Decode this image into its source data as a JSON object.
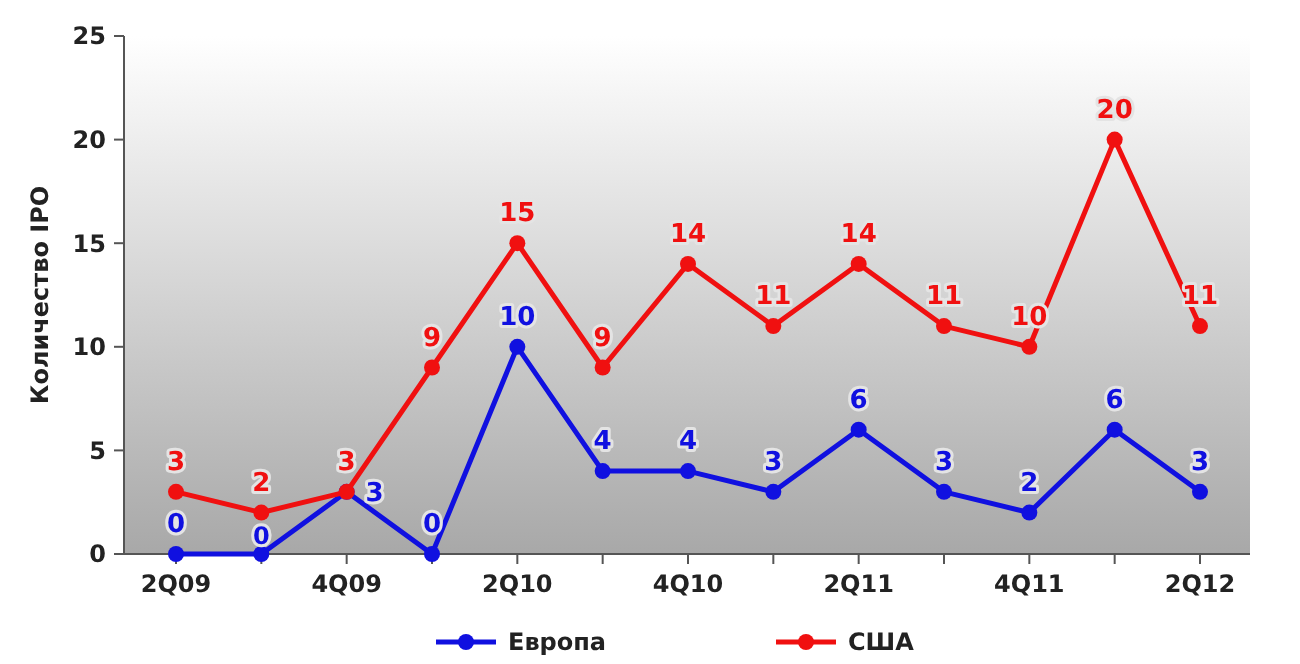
{
  "chart_data": {
    "type": "line",
    "ylabel": "Количество IPO",
    "categories": [
      "2Q09",
      null,
      "4Q09",
      null,
      "2Q10",
      null,
      "4Q10",
      null,
      "2Q11",
      null,
      "4Q11",
      null,
      "2Q12"
    ],
    "series": [
      {
        "name": "Европа",
        "color": "#1010e0",
        "values": [
          0,
          0,
          3,
          0,
          10,
          4,
          4,
          3,
          6,
          3,
          2,
          6,
          3
        ]
      },
      {
        "name": "США",
        "color": "#f01010",
        "values": [
          3,
          2,
          3,
          9,
          15,
          9,
          14,
          11,
          14,
          11,
          10,
          20,
          11
        ]
      }
    ],
    "ylim": [
      0,
      25
    ],
    "yticks": [
      0,
      5,
      10,
      15,
      20,
      25
    ],
    "marker": "circle",
    "line_style": "solid",
    "data_labels": true,
    "legend": "bottom",
    "grid": false
  }
}
